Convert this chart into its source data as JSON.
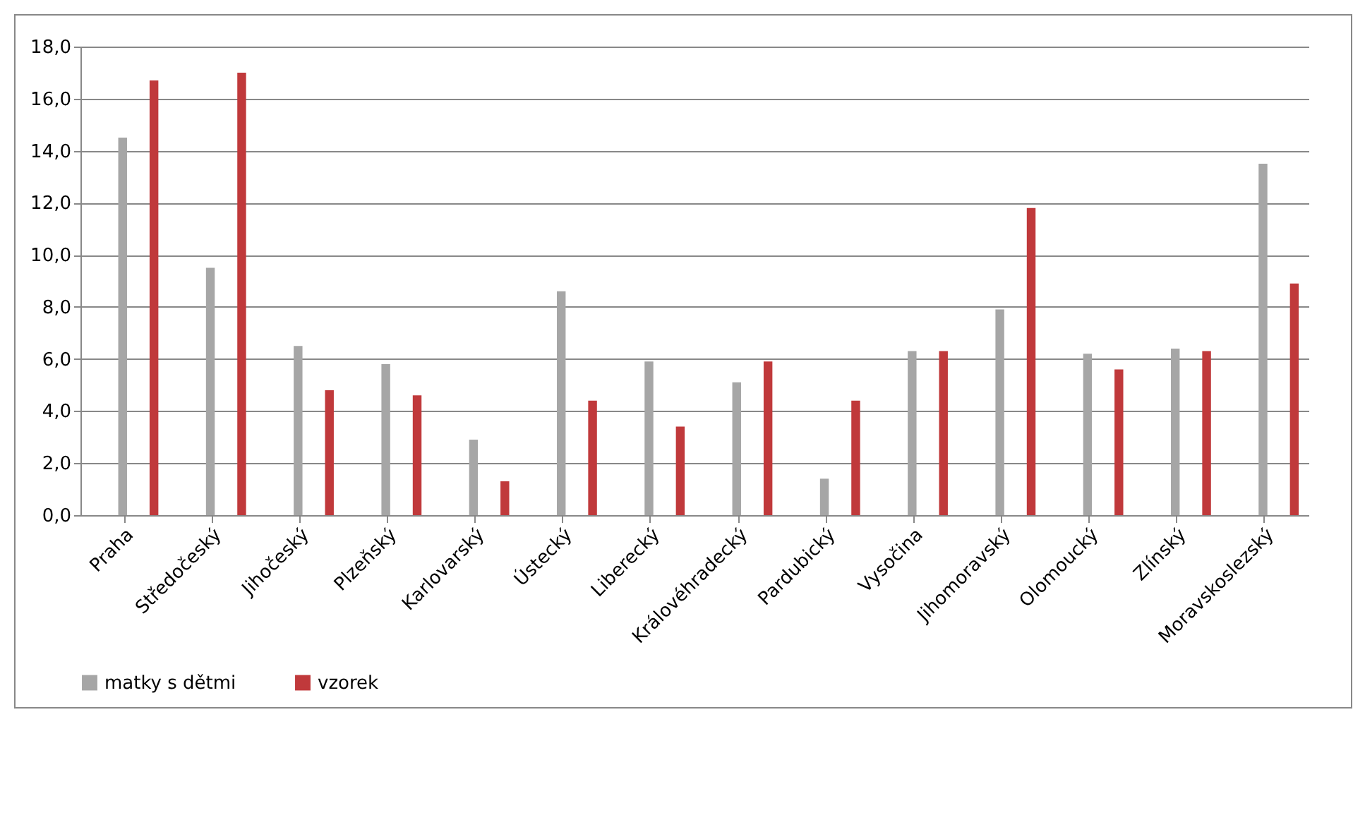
{
  "chart_data": {
    "type": "bar",
    "categories": [
      "Praha",
      "Středočeský",
      "Jihočeský",
      "Plzeňský",
      "Karlovarský",
      "Ústecký",
      "Liberecký",
      "Královéhradecký",
      "Pardubický",
      "Vysočina",
      "Jihomoravský",
      "Olomoucký",
      "Zlínský",
      "Moravskoslezský"
    ],
    "series": [
      {
        "name": "matky s dětmi",
        "color": "#a6a6a6",
        "values": [
          14.5,
          9.5,
          6.5,
          5.8,
          2.9,
          8.6,
          5.9,
          5.1,
          1.4,
          6.3,
          7.9,
          6.2,
          6.4,
          13.5
        ]
      },
      {
        "name": "vzorek",
        "color": "#c0393b",
        "values": [
          16.7,
          17.0,
          4.8,
          4.6,
          1.3,
          4.4,
          3.4,
          5.9,
          4.4,
          6.3,
          11.8,
          5.6,
          6.3,
          8.9
        ]
      }
    ],
    "ylim": [
      0,
      18
    ],
    "yticks": [
      {
        "value": 0,
        "label": "0,0"
      },
      {
        "value": 2,
        "label": "2,0"
      },
      {
        "value": 4,
        "label": "4,0"
      },
      {
        "value": 6,
        "label": "6,0"
      },
      {
        "value": 8,
        "label": "8,0"
      },
      {
        "value": 10,
        "label": "10,0"
      },
      {
        "value": 12,
        "label": "12,0"
      },
      {
        "value": 14,
        "label": "14,0"
      },
      {
        "value": 16,
        "label": "16,0"
      },
      {
        "value": 18,
        "label": "18,0"
      }
    ],
    "grid": "y",
    "legend": "bottom"
  }
}
